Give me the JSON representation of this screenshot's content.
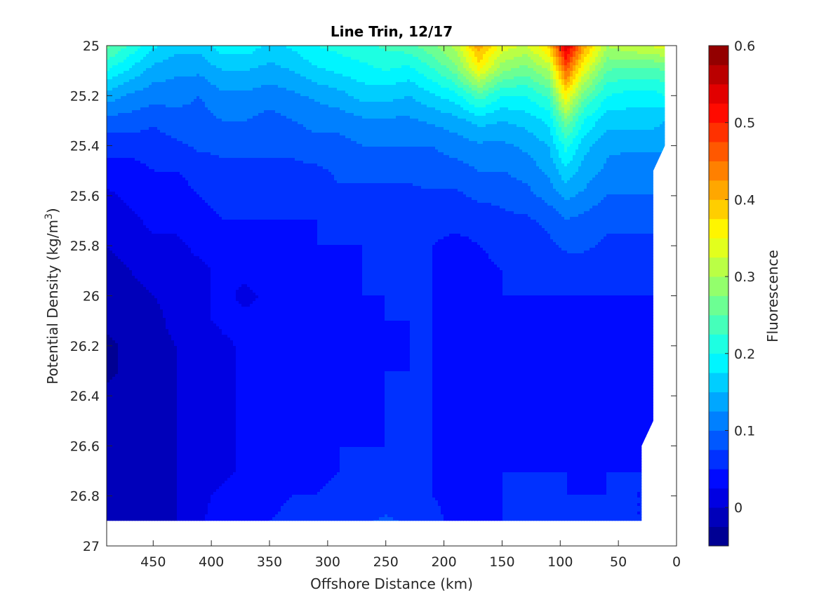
{
  "chart_data": {
    "type": "heatmap",
    "subtype": "filled-contour",
    "title": "Line Trin, 12/17",
    "xlabel": "Offshore Distance (km)",
    "ylabel_main": "Potential Density (kg/m",
    "ylabel_sup": "3",
    "ylabel_close": ")",
    "colorbar_label": "Fluorescence",
    "x_reversed": true,
    "y_reversed": true,
    "xlim": [
      0,
      490
    ],
    "ylim": [
      25,
      27
    ],
    "x_ticks": [
      450,
      400,
      350,
      300,
      250,
      200,
      150,
      100,
      50,
      0
    ],
    "y_ticks": [
      "25",
      "25.2",
      "25.4",
      "25.6",
      "25.8",
      "26",
      "26.2",
      "26.4",
      "26.6",
      "26.8",
      "27"
    ],
    "colorbar_range": [
      -0.05,
      0.6
    ],
    "colorbar_ticks": [
      "0",
      "0.1",
      "0.2",
      "0.3",
      "0.4",
      "0.5",
      "0.6"
    ],
    "colormap": "jet",
    "x_grid": [
      490,
      470,
      450,
      430,
      410,
      390,
      370,
      350,
      330,
      310,
      290,
      270,
      250,
      230,
      210,
      190,
      170,
      150,
      130,
      110,
      95,
      80,
      60,
      40,
      20,
      10
    ],
    "y_grid": [
      25.0,
      25.1,
      25.2,
      25.3,
      25.4,
      25.5,
      25.6,
      25.7,
      25.8,
      25.9,
      26.0,
      26.1,
      26.2,
      26.3,
      26.4,
      26.5,
      26.6,
      26.7,
      26.8,
      26.9
    ],
    "valid_depth_limits": [
      {
        "x": 490,
        "ymax": 26.9
      },
      {
        "x": 30,
        "ymax": 26.9
      },
      {
        "x": 30,
        "ymax": 26.6
      },
      {
        "x": 20,
        "ymax": 26.5
      },
      {
        "x": 20,
        "ymax": 25.5
      },
      {
        "x": 10,
        "ymax": 25.4
      },
      {
        "x": 10,
        "ymax": 25.0
      }
    ],
    "fluorescence": [
      [
        0.26,
        0.22,
        0.18,
        0.16,
        0.16,
        0.19,
        0.19,
        0.17,
        0.18,
        0.2,
        0.21,
        0.22,
        0.23,
        0.24,
        0.27,
        0.31,
        0.42,
        0.34,
        0.32,
        0.38,
        0.55,
        0.42,
        0.3,
        0.32,
        0.33,
        0.34
      ],
      [
        0.2,
        0.17,
        0.14,
        0.13,
        0.13,
        0.15,
        0.15,
        0.14,
        0.15,
        0.17,
        0.18,
        0.19,
        0.2,
        0.19,
        0.22,
        0.26,
        0.35,
        0.28,
        0.26,
        0.3,
        0.46,
        0.34,
        0.25,
        0.24,
        0.24,
        0.25
      ],
      [
        0.14,
        0.12,
        0.11,
        0.11,
        0.1,
        0.12,
        0.12,
        0.11,
        0.12,
        0.13,
        0.14,
        0.16,
        0.16,
        0.15,
        0.17,
        0.19,
        0.24,
        0.2,
        0.2,
        0.23,
        0.36,
        0.26,
        0.2,
        0.19,
        0.19,
        0.2
      ],
      [
        0.09,
        0.09,
        0.08,
        0.09,
        0.09,
        0.1,
        0.1,
        0.09,
        0.1,
        0.11,
        0.11,
        0.12,
        0.12,
        0.12,
        0.13,
        0.14,
        0.16,
        0.15,
        0.16,
        0.18,
        0.27,
        0.2,
        0.16,
        0.16,
        0.16,
        0.15
      ],
      [
        0.06,
        0.06,
        0.06,
        0.07,
        0.08,
        0.08,
        0.08,
        0.08,
        0.08,
        0.09,
        0.09,
        0.1,
        0.1,
        0.1,
        0.1,
        0.11,
        0.12,
        0.12,
        0.13,
        0.15,
        0.21,
        0.16,
        0.13,
        0.13,
        0.13,
        0.13
      ],
      [
        0.04,
        0.04,
        0.05,
        0.05,
        0.06,
        0.07,
        0.07,
        0.07,
        0.07,
        0.07,
        0.08,
        0.08,
        0.08,
        0.08,
        0.09,
        0.09,
        0.1,
        0.1,
        0.11,
        0.13,
        0.17,
        0.14,
        0.12,
        0.11,
        0.11,
        0.11
      ],
      [
        0.02,
        0.03,
        0.04,
        0.04,
        0.05,
        0.06,
        0.06,
        0.06,
        0.06,
        0.06,
        0.07,
        0.07,
        0.07,
        0.07,
        0.07,
        0.07,
        0.08,
        0.08,
        0.09,
        0.11,
        0.13,
        0.12,
        0.1,
        0.1,
        0.1,
        0.1
      ],
      [
        0.01,
        0.02,
        0.03,
        0.03,
        0.04,
        0.05,
        0.05,
        0.05,
        0.05,
        0.05,
        0.06,
        0.06,
        0.06,
        0.06,
        0.06,
        0.06,
        0.06,
        0.07,
        0.07,
        0.08,
        0.1,
        0.09,
        0.08,
        0.08,
        0.08,
        0.08
      ],
      [
        0.0,
        0.01,
        0.02,
        0.02,
        0.03,
        0.04,
        0.04,
        0.04,
        0.04,
        0.05,
        0.05,
        0.05,
        0.05,
        0.05,
        0.05,
        0.04,
        0.05,
        0.06,
        0.06,
        0.07,
        0.08,
        0.08,
        0.07,
        0.07,
        0.07,
        0.07
      ],
      [
        -0.01,
        0.0,
        0.01,
        0.02,
        0.02,
        0.03,
        0.03,
        0.04,
        0.04,
        0.04,
        0.04,
        0.05,
        0.05,
        0.05,
        0.05,
        0.04,
        0.04,
        0.05,
        0.05,
        0.06,
        0.06,
        0.06,
        0.06,
        0.06,
        0.06,
        0.06
      ],
      [
        -0.02,
        -0.01,
        0.0,
        0.01,
        0.02,
        0.03,
        0.02,
        0.03,
        0.04,
        0.04,
        0.04,
        0.05,
        0.05,
        0.05,
        0.05,
        0.04,
        0.04,
        0.05,
        0.05,
        0.05,
        0.05,
        0.05,
        0.05,
        0.05,
        0.05,
        0.05
      ],
      [
        -0.02,
        -0.01,
        -0.01,
        0.01,
        0.02,
        0.03,
        0.03,
        0.03,
        0.04,
        0.04,
        0.04,
        0.04,
        0.05,
        0.05,
        0.05,
        0.04,
        0.04,
        0.04,
        0.05,
        0.04,
        0.04,
        0.04,
        0.05,
        0.04,
        0.05,
        0.05
      ],
      [
        -0.03,
        -0.02,
        -0.01,
        0.0,
        0.01,
        0.02,
        0.03,
        0.03,
        0.04,
        0.04,
        0.04,
        0.04,
        0.04,
        0.05,
        0.05,
        0.04,
        0.04,
        0.04,
        0.04,
        0.04,
        0.04,
        0.04,
        0.04,
        0.04,
        0.05,
        0.05
      ],
      [
        -0.03,
        -0.02,
        -0.01,
        0.0,
        0.01,
        0.02,
        0.03,
        0.03,
        0.04,
        0.04,
        0.04,
        0.04,
        0.05,
        0.05,
        0.05,
        0.04,
        0.04,
        0.04,
        0.04,
        0.04,
        0.03,
        0.04,
        0.04,
        0.04,
        0.04,
        0.05
      ],
      [
        -0.02,
        -0.02,
        -0.01,
        0.0,
        0.01,
        0.02,
        0.03,
        0.03,
        0.04,
        0.04,
        0.04,
        0.04,
        0.05,
        0.05,
        0.05,
        0.04,
        0.04,
        0.04,
        0.03,
        0.03,
        0.03,
        0.04,
        0.04,
        0.04,
        0.04,
        0.05
      ],
      [
        -0.02,
        -0.02,
        -0.01,
        0.0,
        0.01,
        0.02,
        0.03,
        0.03,
        0.04,
        0.04,
        0.04,
        0.04,
        0.05,
        0.05,
        0.05,
        0.04,
        0.04,
        0.04,
        0.04,
        0.04,
        0.04,
        0.04,
        0.04,
        0.04,
        0.04,
        0.05
      ],
      [
        -0.02,
        -0.01,
        -0.01,
        0.0,
        0.01,
        0.02,
        0.03,
        0.03,
        0.04,
        0.04,
        0.05,
        0.05,
        0.05,
        0.05,
        0.05,
        0.04,
        0.04,
        0.04,
        0.04,
        0.04,
        0.04,
        0.04,
        0.04,
        0.04,
        0.04,
        0.05
      ],
      [
        -0.02,
        -0.01,
        -0.01,
        0.0,
        0.01,
        0.02,
        0.03,
        0.03,
        0.04,
        0.04,
        0.05,
        0.05,
        0.05,
        0.05,
        0.05,
        0.04,
        0.04,
        0.05,
        0.05,
        0.05,
        0.05,
        0.04,
        0.05,
        0.05,
        0.05,
        0.05
      ],
      [
        -0.02,
        -0.01,
        -0.01,
        0.0,
        0.02,
        0.03,
        0.03,
        0.04,
        0.05,
        0.05,
        0.06,
        0.06,
        0.06,
        0.06,
        0.05,
        0.04,
        0.04,
        0.05,
        0.05,
        0.05,
        0.05,
        0.05,
        0.05,
        0.05,
        0.05,
        0.05
      ],
      [
        -0.02,
        -0.01,
        -0.01,
        0.0,
        0.02,
        0.04,
        0.04,
        0.05,
        0.06,
        0.06,
        0.07,
        0.07,
        0.08,
        0.07,
        0.06,
        0.04,
        0.04,
        0.05,
        0.05,
        0.06,
        0.06,
        0.05,
        0.06,
        0.05,
        0.05,
        0.05
      ]
    ]
  }
}
